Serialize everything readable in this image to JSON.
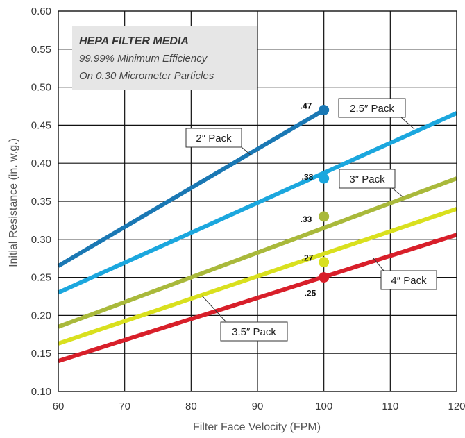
{
  "chart_data": {
    "type": "line",
    "xlabel": "Filter Face Velocity (FPM)",
    "ylabel": "Initial Resistance (in. w.g.)",
    "xlim": [
      60,
      120
    ],
    "ylim": [
      0.1,
      0.6
    ],
    "x_ticks": [
      "60",
      "70",
      "80",
      "90",
      "100",
      "110",
      "120"
    ],
    "y_ticks": [
      "0.10",
      "0.15",
      "0.20",
      "0.25",
      "0.30",
      "0.35",
      "0.40",
      "0.45",
      "0.50",
      "0.55",
      "0.60"
    ],
    "grid": true,
    "info_box": {
      "title": "HEPA FILTER MEDIA",
      "lines": [
        "99.99% Minimum Efficiency",
        "On 0.30 Micrometer Particles"
      ]
    },
    "series": [
      {
        "name": "2″ Pack",
        "color": "#1a78b4",
        "x": [
          60,
          100
        ],
        "y": [
          0.265,
          0.47
        ],
        "marker": {
          "x": 100,
          "y": 0.47,
          "label": ".47"
        }
      },
      {
        "name": "2.5″ Pack",
        "color": "#1ba7de",
        "x": [
          60,
          120
        ],
        "y": [
          0.23,
          0.466
        ],
        "marker": {
          "x": 100,
          "y": 0.38,
          "label": ".38"
        }
      },
      {
        "name": "3″ Pack",
        "color": "#a9b93b",
        "x": [
          60,
          120
        ],
        "y": [
          0.185,
          0.38
        ],
        "marker": {
          "x": 100,
          "y": 0.33,
          "label": ".33"
        }
      },
      {
        "name": "3.5″ Pack",
        "color": "#d9e01e",
        "x": [
          60,
          120
        ],
        "y": [
          0.163,
          0.34
        ],
        "marker": {
          "x": 100,
          "y": 0.27,
          "label": ".27"
        }
      },
      {
        "name": "4″ Pack",
        "color": "#d81f2a",
        "x": [
          60,
          120
        ],
        "y": [
          0.14,
          0.306
        ],
        "marker": {
          "x": 100,
          "y": 0.25,
          "label": ".25"
        }
      }
    ]
  }
}
